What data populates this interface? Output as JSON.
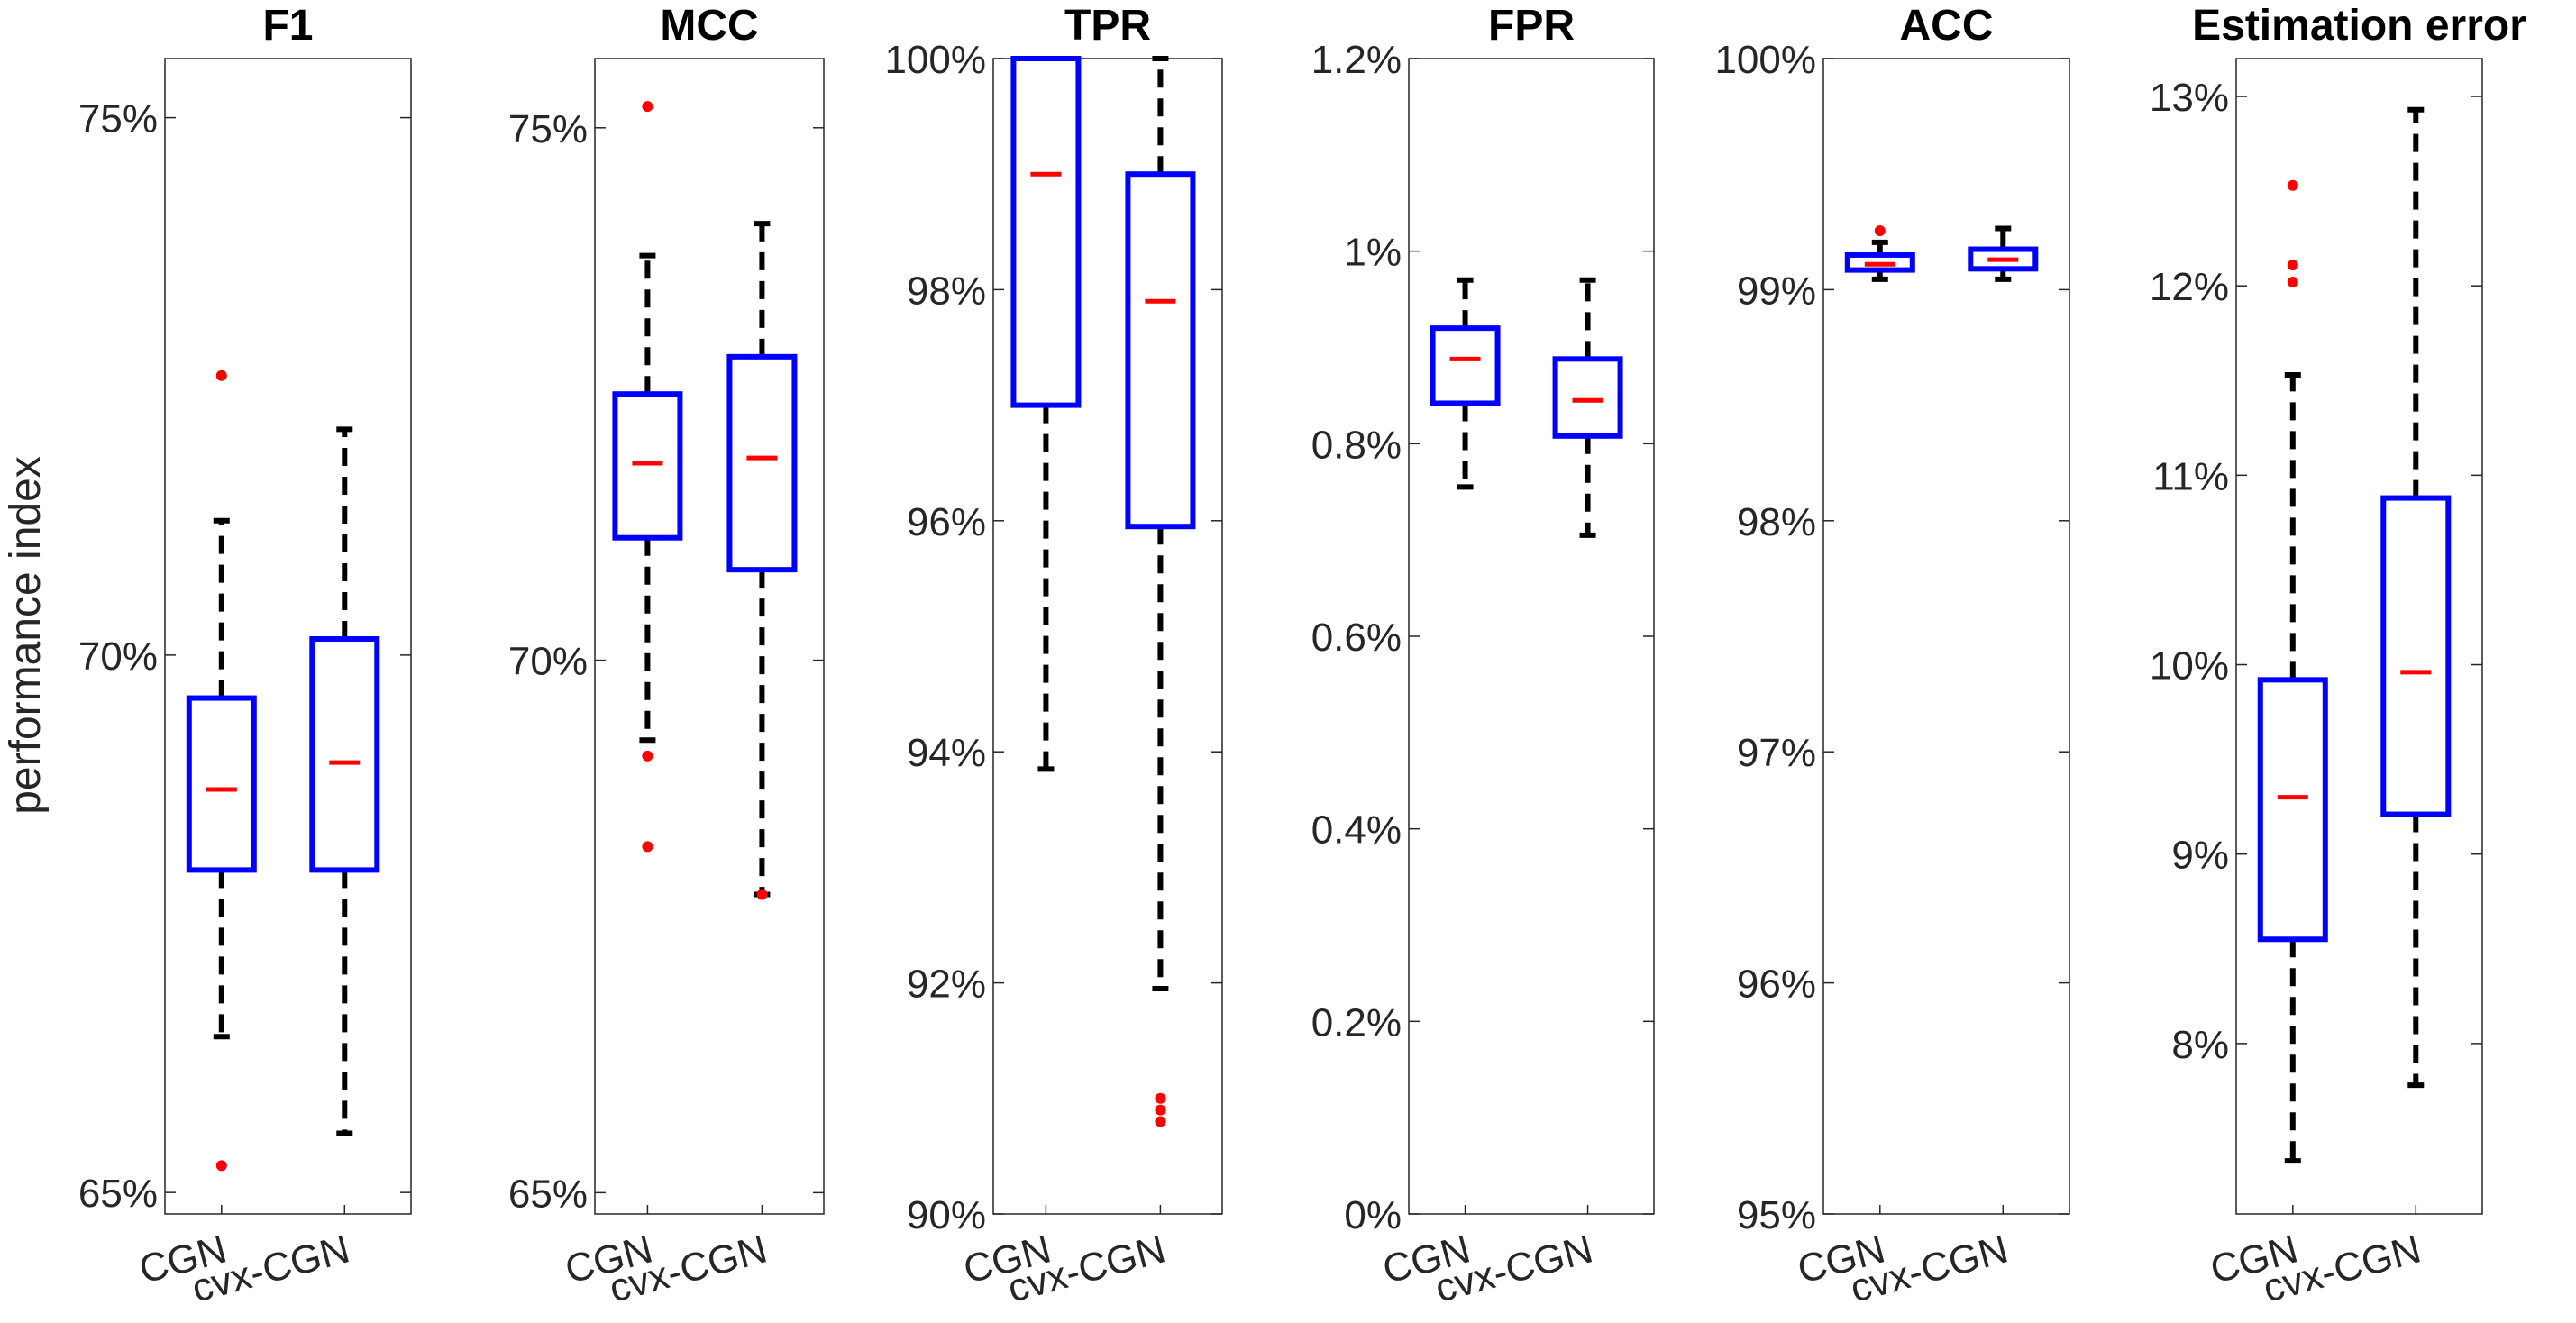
{
  "ylabel": "performance index",
  "chart_data": [
    {
      "type": "box",
      "title": "F1",
      "categories": [
        "CGN",
        "cvx-CGN"
      ],
      "ylim": [
        0.648,
        0.7555
      ],
      "ticks": [
        0.65,
        0.7,
        0.75
      ],
      "tick_labels": [
        "65%",
        "70%",
        "75%"
      ],
      "boxes": [
        {
          "q1": 0.68,
          "median": 0.6875,
          "q3": 0.696,
          "whisker_low": 0.6645,
          "whisker_high": 0.7125,
          "outliers": [
            0.726,
            0.6525
          ]
        },
        {
          "q1": 0.68,
          "median": 0.69,
          "q3": 0.7015,
          "whisker_low": 0.6555,
          "whisker_high": 0.721,
          "outliers": []
        }
      ]
    },
    {
      "type": "box",
      "title": "MCC",
      "categories": [
        "CGN",
        "cvx-CGN"
      ],
      "ylim": [
        0.648,
        0.7565
      ],
      "ticks": [
        0.65,
        0.7,
        0.75
      ],
      "tick_labels": [
        "65%",
        "70%",
        "75%"
      ],
      "boxes": [
        {
          "q1": 0.7115,
          "median": 0.7185,
          "q3": 0.725,
          "whisker_low": 0.6925,
          "whisker_high": 0.738,
          "outliers": [
            0.752,
            0.691,
            0.6825
          ]
        },
        {
          "q1": 0.7085,
          "median": 0.719,
          "q3": 0.7285,
          "whisker_low": 0.678,
          "whisker_high": 0.741,
          "outliers": [
            0.678
          ]
        }
      ]
    },
    {
      "type": "box",
      "title": "TPR",
      "categories": [
        "CGN",
        "cvx-CGN"
      ],
      "ylim": [
        0.9,
        1.0
      ],
      "ticks": [
        0.9,
        0.92,
        0.94,
        0.96,
        0.98,
        1.0
      ],
      "tick_labels": [
        "90%",
        "92%",
        "94%",
        "96%",
        "98%",
        "100%"
      ],
      "boxes": [
        {
          "q1": 0.97,
          "median": 0.99,
          "q3": 1.0,
          "whisker_low": 0.9385,
          "whisker_high": 1.0,
          "outliers": []
        },
        {
          "q1": 0.9595,
          "median": 0.979,
          "q3": 0.99,
          "whisker_low": 0.9195,
          "whisker_high": 1.0,
          "outliers": [
            0.91,
            0.909,
            0.908
          ]
        }
      ]
    },
    {
      "type": "box",
      "title": "FPR",
      "categories": [
        "CGN",
        "cvx-CGN"
      ],
      "ylim": [
        0.0,
        0.012
      ],
      "ticks": [
        0.0,
        0.002,
        0.004,
        0.006,
        0.008,
        0.01,
        0.012
      ],
      "tick_labels": [
        "0%",
        "0.2%",
        "0.4%",
        "0.6%",
        "0.8%",
        "1%",
        "1.2%"
      ],
      "boxes": [
        {
          "q1": 0.00842,
          "median": 0.00888,
          "q3": 0.0092,
          "whisker_low": 0.00755,
          "whisker_high": 0.0097,
          "outliers": []
        },
        {
          "q1": 0.00808,
          "median": 0.00845,
          "q3": 0.00888,
          "whisker_low": 0.00705,
          "whisker_high": 0.0097,
          "outliers": []
        }
      ]
    },
    {
      "type": "box",
      "title": "ACC",
      "categories": [
        "CGN",
        "cvx-CGN"
      ],
      "ylim": [
        0.95,
        1.0
      ],
      "ticks": [
        0.95,
        0.96,
        0.97,
        0.98,
        0.99,
        1.0
      ],
      "tick_labels": [
        "95%",
        "96%",
        "97%",
        "98%",
        "99%",
        "100%"
      ],
      "boxes": [
        {
          "q1": 0.99085,
          "median": 0.9911,
          "q3": 0.9915,
          "whisker_low": 0.99045,
          "whisker_high": 0.99205,
          "outliers": [
            0.99255
          ]
        },
        {
          "q1": 0.9909,
          "median": 0.9913,
          "q3": 0.99175,
          "whisker_low": 0.99045,
          "whisker_high": 0.99265,
          "outliers": []
        }
      ]
    },
    {
      "type": "box",
      "title": "Estimation error",
      "categories": [
        "CGN",
        "cvx-CGN"
      ],
      "ylim": [
        0.071,
        0.132
      ],
      "ticks": [
        0.08,
        0.09,
        0.1,
        0.11,
        0.12,
        0.13
      ],
      "tick_labels": [
        "8%",
        "9%",
        "10%",
        "11%",
        "12%",
        "13%"
      ],
      "boxes": [
        {
          "q1": 0.0855,
          "median": 0.093,
          "q3": 0.0992,
          "whisker_low": 0.0738,
          "whisker_high": 0.1153,
          "outliers": [
            0.1253,
            0.1211,
            0.1202
          ]
        },
        {
          "q1": 0.0921,
          "median": 0.0996,
          "q3": 0.1088,
          "whisker_low": 0.0778,
          "whisker_high": 0.1293,
          "outliers": []
        }
      ]
    }
  ]
}
